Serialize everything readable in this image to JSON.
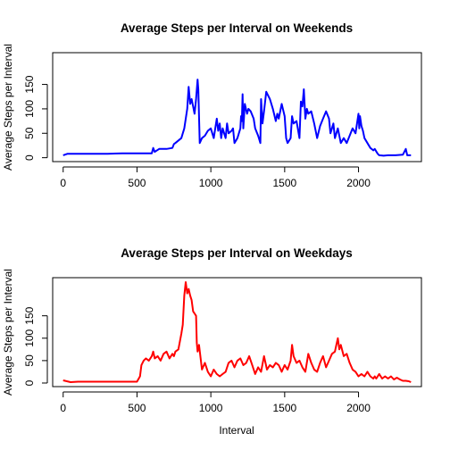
{
  "chart_data": [
    {
      "type": "line",
      "title": "Average Steps per Interval on Weekends",
      "xlabel": "",
      "ylabel": "Average Steps per Interval",
      "xlim": [
        -71,
        2426
      ],
      "ylim": [
        -8,
        215
      ],
      "xticks": [
        "0",
        "500",
        "1000",
        "1500",
        "2000"
      ],
      "yticks": [
        "0",
        "50",
        "100",
        "150"
      ],
      "grid": false,
      "legend": "none",
      "series": [
        {
          "color": "#0000FF",
          "x": [
            0,
            30,
            100,
            200,
            300,
            400,
            500,
            550,
            600,
            610,
            620,
            650,
            700,
            740,
            750,
            760,
            800,
            820,
            840,
            850,
            860,
            870,
            880,
            890,
            900,
            910,
            915,
            925,
            940,
            960,
            980,
            1000,
            1020,
            1040,
            1050,
            1060,
            1070,
            1080,
            1100,
            1110,
            1120,
            1140,
            1150,
            1160,
            1180,
            1200,
            1205,
            1210,
            1215,
            1220,
            1230,
            1245,
            1255,
            1270,
            1290,
            1300,
            1320,
            1335,
            1340,
            1350,
            1360,
            1375,
            1400,
            1420,
            1440,
            1450,
            1460,
            1480,
            1500,
            1510,
            1520,
            1540,
            1550,
            1560,
            1580,
            1600,
            1610,
            1620,
            1630,
            1640,
            1650,
            1660,
            1680,
            1700,
            1720,
            1740,
            1760,
            1780,
            1800,
            1810,
            1820,
            1830,
            1840,
            1850,
            1860,
            1880,
            1900,
            1920,
            1940,
            1960,
            1980,
            2000,
            2005,
            2010,
            2020,
            2030,
            2040,
            2080,
            2100,
            2110,
            2130,
            2140,
            2170,
            2200,
            2220,
            2250,
            2300,
            2320,
            2330,
            2340,
            2355
          ],
          "values": [
            5,
            8,
            8,
            8,
            8,
            9,
            9,
            9,
            9,
            20,
            12,
            18,
            18,
            20,
            28,
            30,
            40,
            60,
            100,
            145,
            110,
            120,
            105,
            90,
            120,
            160,
            140,
            30,
            40,
            45,
            55,
            60,
            40,
            80,
            55,
            70,
            40,
            60,
            40,
            70,
            50,
            55,
            60,
            30,
            40,
            60,
            85,
            75,
            130,
            60,
            110,
            90,
            100,
            95,
            80,
            60,
            45,
            30,
            120,
            70,
            95,
            135,
            120,
            100,
            75,
            90,
            80,
            110,
            85,
            40,
            30,
            40,
            85,
            70,
            75,
            40,
            115,
            105,
            140,
            80,
            100,
            90,
            95,
            70,
            40,
            65,
            80,
            95,
            80,
            50,
            60,
            70,
            40,
            50,
            60,
            30,
            40,
            30,
            45,
            60,
            50,
            90,
            60,
            85,
            65,
            55,
            40,
            20,
            15,
            18,
            8,
            5,
            4,
            5,
            5,
            5,
            6,
            18,
            5,
            5,
            5
          ],
          "linewidth": 2
        }
      ]
    },
    {
      "type": "line",
      "title": "Average Steps per Interval on Weekdays",
      "xlabel": "Interval",
      "ylabel": "Average Steps per Interval",
      "xlim": [
        -71,
        2426
      ],
      "ylim": [
        -8,
        235
      ],
      "xticks": [
        "0",
        "500",
        "1000",
        "1500",
        "2000"
      ],
      "yticks": [
        "0",
        "50",
        "100",
        "150"
      ],
      "grid": false,
      "legend": "none",
      "series": [
        {
          "color": "#FF0000",
          "x": [
            0,
            50,
            100,
            200,
            300,
            400,
            500,
            520,
            530,
            545,
            560,
            580,
            600,
            610,
            620,
            640,
            660,
            680,
            700,
            720,
            740,
            750,
            760,
            780,
            800,
            810,
            820,
            830,
            840,
            850,
            860,
            870,
            880,
            900,
            905,
            910,
            920,
            940,
            960,
            980,
            1000,
            1020,
            1040,
            1060,
            1080,
            1100,
            1120,
            1140,
            1160,
            1180,
            1200,
            1220,
            1240,
            1260,
            1280,
            1300,
            1320,
            1340,
            1360,
            1380,
            1400,
            1420,
            1440,
            1460,
            1480,
            1500,
            1520,
            1540,
            1550,
            1560,
            1580,
            1600,
            1620,
            1640,
            1660,
            1680,
            1700,
            1720,
            1740,
            1760,
            1780,
            1800,
            1820,
            1840,
            1850,
            1860,
            1870,
            1880,
            1900,
            1920,
            1940,
            1960,
            1980,
            2000,
            2020,
            2040,
            2060,
            2080,
            2100,
            2110,
            2120,
            2140,
            2160,
            2180,
            2200,
            2220,
            2240,
            2260,
            2280,
            2300,
            2320,
            2340,
            2355
          ],
          "values": [
            6,
            2,
            3,
            3,
            3,
            3,
            3,
            15,
            40,
            50,
            55,
            50,
            60,
            70,
            55,
            60,
            50,
            65,
            70,
            55,
            65,
            60,
            70,
            75,
            110,
            130,
            195,
            225,
            200,
            210,
            195,
            185,
            160,
            150,
            90,
            70,
            85,
            30,
            45,
            25,
            15,
            30,
            20,
            15,
            20,
            25,
            45,
            50,
            35,
            50,
            55,
            40,
            45,
            60,
            40,
            20,
            35,
            25,
            60,
            30,
            40,
            35,
            45,
            40,
            25,
            40,
            30,
            50,
            85,
            60,
            45,
            50,
            35,
            25,
            65,
            45,
            30,
            25,
            45,
            60,
            35,
            50,
            65,
            70,
            85,
            100,
            75,
            85,
            60,
            65,
            45,
            30,
            25,
            15,
            20,
            15,
            25,
            15,
            10,
            15,
            10,
            20,
            10,
            15,
            10,
            15,
            8,
            12,
            8,
            5,
            5,
            4,
            2
          ]
        }
      ]
    }
  ]
}
